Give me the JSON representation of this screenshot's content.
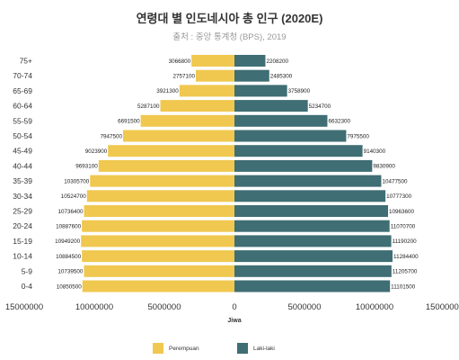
{
  "chart_data": {
    "type": "bar",
    "orientation": "horizontal",
    "title": "연령대 별 인도네시아 총 인구 (2020E)",
    "subtitle": "출처 : 중앙 통계청 (BPS), 2019",
    "xlabel": "Jiwa",
    "categories": [
      "75+",
      "70-74",
      "65-69",
      "60-64",
      "55-59",
      "50-54",
      "45-49",
      "40-44",
      "35-39",
      "30-34",
      "25-29",
      "20-24",
      "15-19",
      "10-14",
      "5-9",
      "0-4"
    ],
    "series": [
      {
        "name": "Perempuan",
        "color": "#f0c84f",
        "side": "left",
        "values": [
          3066800,
          2757100,
          3921300,
          5287100,
          6691500,
          7947500,
          9023900,
          9693100,
          10305700,
          10524700,
          10736400,
          10887600,
          10949200,
          10884500,
          10739500,
          10850500
        ],
        "labels": [
          "3066800",
          "2757100",
          "3921300",
          "5287100",
          "6691500",
          "7947500",
          "9023900",
          "9693100",
          "10305700",
          "10524700",
          "10736400",
          "10887600",
          "10949200",
          "10884500",
          "10739500",
          "10850500"
        ]
      },
      {
        "name": "Laki-laki",
        "color": "#3f6e74",
        "side": "right",
        "values": [
          2208200,
          2485300,
          3758900,
          5234700,
          6632300,
          7975500,
          9140300,
          9830900,
          10477500,
          10777300,
          10963600,
          11070700,
          11190200,
          11284400,
          11205700,
          11101500
        ],
        "labels": [
          "2208200",
          "2485300",
          "3758900",
          "5234700",
          "6632300",
          "7975500",
          "9140300",
          "9830900",
          "10477500",
          "10777300",
          "10963600",
          "11070700",
          "11190200",
          "11284400",
          "11205700",
          "11101500"
        ]
      }
    ],
    "xlim": [
      -15000000,
      15000000
    ],
    "xticks": [
      "15000000",
      "10000000",
      "5000000",
      "0",
      "5000000",
      "10000000",
      "15000000"
    ],
    "grid": false,
    "legend": "bottom"
  },
  "legend": {
    "female_label": "Perempuan",
    "male_label": "Laki-laki"
  }
}
